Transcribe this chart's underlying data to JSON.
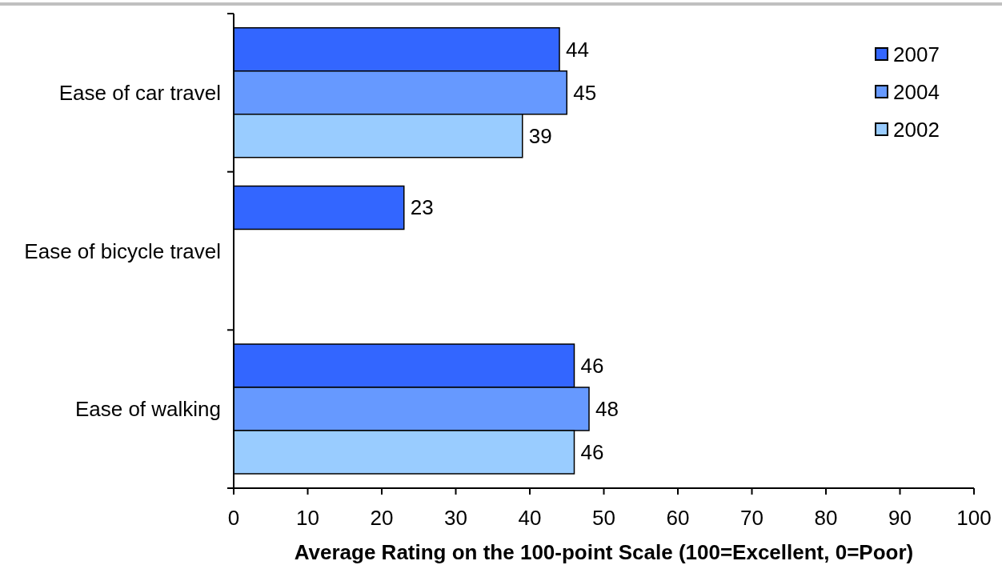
{
  "chart_data": {
    "type": "bar",
    "orientation": "horizontal",
    "categories": [
      "Ease of car travel",
      "Ease of bicycle travel",
      "Ease of walking"
    ],
    "series": [
      {
        "name": "2007",
        "color": "#3366ff",
        "values": [
          44,
          23,
          46
        ]
      },
      {
        "name": "2004",
        "color": "#6699ff",
        "values": [
          45,
          null,
          48
        ]
      },
      {
        "name": "2002",
        "color": "#99ccff",
        "values": [
          39,
          null,
          46
        ]
      }
    ],
    "xlabel": "Average Rating on the 100-point Scale (100=Excellent, 0=Poor)",
    "xlim": [
      0,
      100
    ],
    "xticks": [
      0,
      10,
      20,
      30,
      40,
      50,
      60,
      70,
      80,
      90,
      100
    ],
    "data_labels": true,
    "legend": "top right"
  }
}
